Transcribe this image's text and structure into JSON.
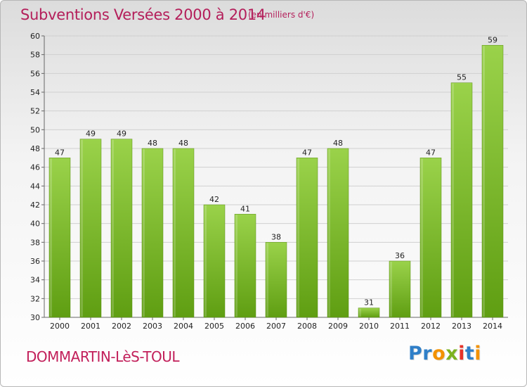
{
  "header": {
    "title": "Subventions Versées 2000 à 2014",
    "subtitle": "(en milliers d'€)"
  },
  "footer": {
    "commune": "DOMMARTIN-LèS-TOUL",
    "logo_text": "Proxiti",
    "logo_letters": [
      {
        "char": "P",
        "color": "#2f7fc8"
      },
      {
        "char": "r",
        "color": "#2f7fc8"
      },
      {
        "char": "o",
        "color": "#f39200"
      },
      {
        "char": "x",
        "color": "#7cb21f"
      },
      {
        "char": "i",
        "color": "#e6332a"
      },
      {
        "char": "t",
        "color": "#2f7fc8"
      },
      {
        "char": "i",
        "color": "#f39200"
      }
    ]
  },
  "colors": {
    "title": "#b41e5a",
    "bar_top": "#9ad24a",
    "bar_bottom": "#5f9e12",
    "grid": "#d0d0d0"
  },
  "chart_data": {
    "type": "bar",
    "title": "Subventions Versées 2000 à 2014",
    "subtitle": "(en milliers d'€)",
    "xlabel": "",
    "ylabel": "",
    "categories": [
      "2000",
      "2001",
      "2002",
      "2003",
      "2004",
      "2005",
      "2006",
      "2007",
      "2008",
      "2009",
      "2010",
      "2011",
      "2012",
      "2013",
      "2014"
    ],
    "values": [
      47,
      49,
      49,
      48,
      48,
      42,
      41,
      38,
      47,
      48,
      31,
      36,
      47,
      55,
      59
    ],
    "ylim": [
      30,
      60
    ],
    "yticks": [
      30,
      32,
      34,
      36,
      38,
      40,
      42,
      44,
      46,
      48,
      50,
      52,
      54,
      56,
      58,
      60
    ],
    "grid": true,
    "data_labels": true
  }
}
